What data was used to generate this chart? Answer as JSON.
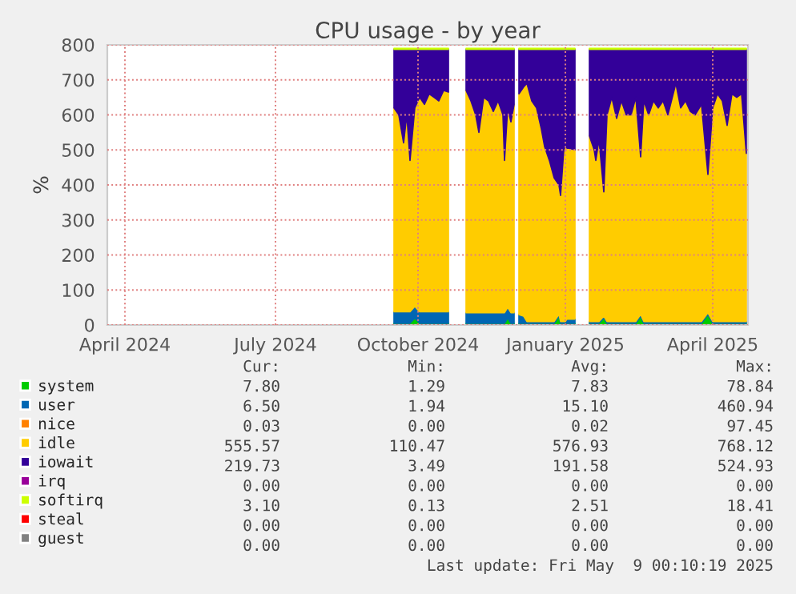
{
  "chart_data": {
    "type": "area",
    "stacked": true,
    "title": "CPU usage - by year",
    "ylabel": "%",
    "x": [
      "2024-09-30",
      "2024-10-03",
      "2024-10-06",
      "2024-10-08",
      "2024-10-10",
      "2024-10-13",
      "2024-10-16",
      "2024-10-19",
      "2024-10-22",
      "2024-10-25",
      "2024-10-28",
      "2024-10-31",
      "2024-11-03",
      "2024-11-04",
      "2024-11-14",
      "2024-11-17",
      "2024-11-20",
      "2024-11-22",
      "2024-11-25",
      "2024-11-28",
      "2024-12-01",
      "2024-12-04",
      "2024-12-07",
      "2024-12-08",
      "2024-12-10",
      "2024-12-12",
      "2024-12-14",
      "2024-12-15",
      "2024-12-17",
      "2024-12-20",
      "2024-12-22",
      "2024-12-25",
      "2024-12-28",
      "2024-12-31",
      "2025-01-02",
      "2025-01-05",
      "2025-01-08",
      "2025-01-11",
      "2025-01-12",
      "2025-01-14",
      "2025-01-15",
      "2025-01-16",
      "2025-01-17",
      "2025-01-21",
      "2025-01-22",
      "2025-01-30",
      "2025-02-02",
      "2025-02-03",
      "2025-02-05",
      "2025-02-08",
      "2025-02-10",
      "2025-02-13",
      "2025-02-16",
      "2025-02-19",
      "2025-02-22",
      "2025-02-25",
      "2025-02-28",
      "2025-03-03",
      "2025-03-05",
      "2025-03-08",
      "2025-03-11",
      "2025-03-14",
      "2025-03-17",
      "2025-03-20",
      "2025-03-25",
      "2025-03-28",
      "2025-03-31",
      "2025-04-03",
      "2025-04-06",
      "2025-04-10",
      "2025-04-14",
      "2025-04-17",
      "2025-04-20",
      "2025-04-23",
      "2025-04-26",
      "2025-04-29",
      "2025-05-02",
      "2025-05-05",
      "2025-05-08"
    ],
    "series": [
      {
        "name": "system",
        "color": "#00cc00",
        "values": [
          5,
          5,
          5,
          5,
          5,
          20,
          5,
          5,
          5,
          5,
          5,
          5,
          5,
          null,
          5,
          5,
          5,
          5,
          5,
          5,
          5,
          5,
          5,
          5,
          20,
          5,
          5,
          null,
          5,
          5,
          5,
          5,
          5,
          5,
          5,
          5,
          5,
          25,
          5,
          5,
          5,
          5,
          5,
          5,
          null,
          5,
          5,
          5,
          5,
          20,
          5,
          5,
          5,
          5,
          5,
          5,
          5,
          25,
          5,
          5,
          5,
          5,
          5,
          5,
          5,
          5,
          5,
          5,
          5,
          5,
          30,
          5,
          5,
          5,
          5,
          5,
          5,
          5,
          5
        ]
      },
      {
        "name": "user",
        "color": "#0066b3",
        "values": [
          33,
          33,
          33,
          33,
          33,
          33,
          33,
          33,
          33,
          33,
          33,
          33,
          33,
          null,
          30,
          30,
          30,
          30,
          30,
          30,
          30,
          30,
          30,
          30,
          30,
          30,
          30,
          null,
          25,
          20,
          5,
          5,
          5,
          5,
          5,
          5,
          5,
          5,
          5,
          5,
          5,
          12,
          12,
          12,
          null,
          5,
          5,
          5,
          5,
          5,
          5,
          5,
          5,
          5,
          5,
          5,
          5,
          5,
          5,
          5,
          5,
          5,
          5,
          5,
          5,
          5,
          5,
          5,
          5,
          5,
          5,
          5,
          5,
          5,
          5,
          5,
          5,
          5,
          5
        ]
      },
      {
        "name": "nice",
        "color": "#ff8000",
        "values": [
          null,
          null,
          null,
          null,
          null,
          null,
          null,
          null,
          null,
          null,
          null,
          null,
          null,
          null,
          null,
          null,
          null,
          null,
          null,
          null,
          null,
          null,
          null,
          null,
          null,
          null,
          null,
          null,
          null,
          null,
          null,
          null,
          null,
          null,
          null,
          null,
          null,
          null,
          null,
          null,
          null,
          null,
          null,
          null,
          null,
          null,
          null,
          null,
          null,
          null,
          null,
          null,
          null,
          null,
          null,
          null,
          null,
          null,
          null,
          null,
          null,
          null,
          null,
          null,
          null,
          null,
          null,
          null,
          null,
          null,
          null,
          null,
          null,
          null,
          null,
          null,
          null,
          null,
          null
        ]
      },
      {
        "name": "idle",
        "color": "#ffcc00",
        "values": [
          582,
          562,
          482,
          562,
          432,
          567,
          612,
          592,
          622,
          612,
          602,
          632,
          627,
          null,
          635,
          605,
          565,
          515,
          615,
          605,
          575,
          605,
          565,
          435,
          570,
          545,
          595,
          null,
          630,
          655,
          680,
          630,
          610,
          550,
          500,
          460,
          410,
          370,
          360,
          490,
          500,
          488,
          488,
          483,
          null,
          530,
          490,
          460,
          520,
          355,
          590,
          640,
          580,
          630,
          590,
          590,
          640,
          450,
          630,
          590,
          630,
          610,
          630,
          590,
          680,
          610,
          630,
          600,
          590,
          620,
          395,
          610,
          650,
          630,
          560,
          650,
          640,
          650,
          480
        ]
      },
      {
        "name": "iowait",
        "color": "#330099",
        "values": [
          167,
          187,
          267,
          187,
          317,
          167,
          137,
          157,
          127,
          137,
          147,
          117,
          122,
          null,
          117,
          147,
          187,
          237,
          137,
          147,
          177,
          147,
          187,
          317,
          167,
          207,
          157,
          null,
          127,
          107,
          97,
          147,
          167,
          227,
          277,
          317,
          367,
          387,
          417,
          287,
          277,
          282,
          282,
          287,
          null,
          247,
          287,
          317,
          257,
          407,
          187,
          137,
          197,
          147,
          187,
          187,
          137,
          307,
          147,
          187,
          147,
          167,
          147,
          187,
          97,
          167,
          147,
          177,
          187,
          157,
          357,
          167,
          127,
          147,
          217,
          127,
          137,
          127,
          297
        ]
      },
      {
        "name": "irq",
        "color": "#990099",
        "values": [
          null,
          null,
          null,
          null,
          null,
          null,
          null,
          null,
          null,
          null,
          null,
          null,
          null,
          null,
          null,
          null,
          null,
          null,
          null,
          null,
          null,
          null,
          null,
          null,
          null,
          null,
          null,
          null,
          null,
          null,
          null,
          null,
          null,
          null,
          null,
          null,
          null,
          null,
          null,
          null,
          null,
          null,
          null,
          null,
          null,
          null,
          null,
          null,
          null,
          null,
          null,
          null,
          null,
          null,
          null,
          null,
          null,
          null,
          null,
          null,
          null,
          null,
          null,
          null,
          null,
          null,
          null,
          null,
          null,
          null,
          null,
          null,
          null,
          null,
          null,
          null,
          null,
          null,
          null
        ]
      },
      {
        "name": "softirq",
        "color": "#ccff00",
        "values": [
          3,
          3,
          3,
          3,
          3,
          3,
          3,
          3,
          3,
          3,
          3,
          3,
          3,
          null,
          3,
          3,
          3,
          3,
          3,
          3,
          3,
          3,
          3,
          3,
          3,
          3,
          3,
          null,
          3,
          3,
          3,
          3,
          3,
          3,
          3,
          3,
          3,
          3,
          3,
          3,
          3,
          3,
          3,
          3,
          null,
          3,
          3,
          3,
          3,
          3,
          3,
          3,
          3,
          3,
          3,
          3,
          3,
          3,
          3,
          3,
          3,
          3,
          3,
          3,
          3,
          3,
          3,
          3,
          3,
          3,
          3,
          3,
          3,
          3,
          3,
          3,
          3,
          3,
          3
        ]
      },
      {
        "name": "steal",
        "color": "#ff0000",
        "values": [
          null,
          null,
          null,
          null,
          null,
          null,
          null,
          null,
          null,
          null,
          null,
          null,
          null,
          null,
          null,
          null,
          null,
          null,
          null,
          null,
          null,
          null,
          null,
          null,
          null,
          null,
          null,
          null,
          null,
          null,
          null,
          null,
          null,
          null,
          null,
          null,
          null,
          null,
          null,
          null,
          null,
          null,
          null,
          null,
          null,
          null,
          null,
          null,
          null,
          null,
          null,
          null,
          null,
          null,
          null,
          null,
          null,
          null,
          null,
          null,
          null,
          null,
          null,
          null,
          null,
          null,
          null,
          null,
          null,
          null,
          null,
          null,
          null,
          null,
          null,
          null,
          null,
          null,
          null
        ]
      },
      {
        "name": "guest",
        "color": "#808080",
        "values": [
          null,
          null,
          null,
          null,
          null,
          null,
          null,
          null,
          null,
          null,
          null,
          null,
          null,
          null,
          null,
          null,
          null,
          null,
          null,
          null,
          null,
          null,
          null,
          null,
          null,
          null,
          null,
          null,
          null,
          null,
          null,
          null,
          null,
          null,
          null,
          null,
          null,
          null,
          null,
          null,
          null,
          null,
          null,
          null,
          null,
          null,
          null,
          null,
          null,
          null,
          null,
          null,
          null,
          null,
          null,
          null,
          null,
          null,
          null,
          null,
          null,
          null,
          null,
          null,
          null,
          null,
          null,
          null,
          null,
          null,
          null,
          null,
          null,
          null,
          null,
          null,
          null,
          null,
          null
        ]
      }
    ],
    "xlim": [
      "2024-04-04",
      "2025-05-09"
    ],
    "xticks": [
      {
        "value": "2024-04-15",
        "label": "April 2024"
      },
      {
        "value": "2024-07-18",
        "label": "July 2024"
      },
      {
        "value": "2024-10-15",
        "label": "October 2024"
      },
      {
        "value": "2025-01-15",
        "label": "January 2025"
      },
      {
        "value": "2025-04-17",
        "label": "April 2025"
      }
    ],
    "ylim": [
      0,
      800
    ],
    "yticks": [
      0,
      100,
      200,
      300,
      400,
      500,
      600,
      700,
      800
    ],
    "grid": true,
    "legend": "bottom",
    "annotations": [
      "Cur:",
      "Min:",
      "Avg:",
      "Max:",
      "7.80",
      "1.29",
      "7.83",
      "78.84",
      "6.50",
      "1.94",
      "15.10",
      "460.94",
      "0.03",
      "0.00",
      "0.02",
      "97.45",
      "555.57",
      "110.47",
      "576.93",
      "768.12",
      "219.73",
      "3.49",
      "191.58",
      "524.93",
      "0.00",
      "0.00",
      "0.00",
      "0.00",
      "3.10",
      "0.13",
      "2.51",
      "18.41",
      "0.00",
      "0.00",
      "0.00",
      "0.00",
      "0.00",
      "0.00",
      "0.00",
      "0.00",
      "Last update: Fri May  9 00:10:19 2025"
    ]
  }
}
